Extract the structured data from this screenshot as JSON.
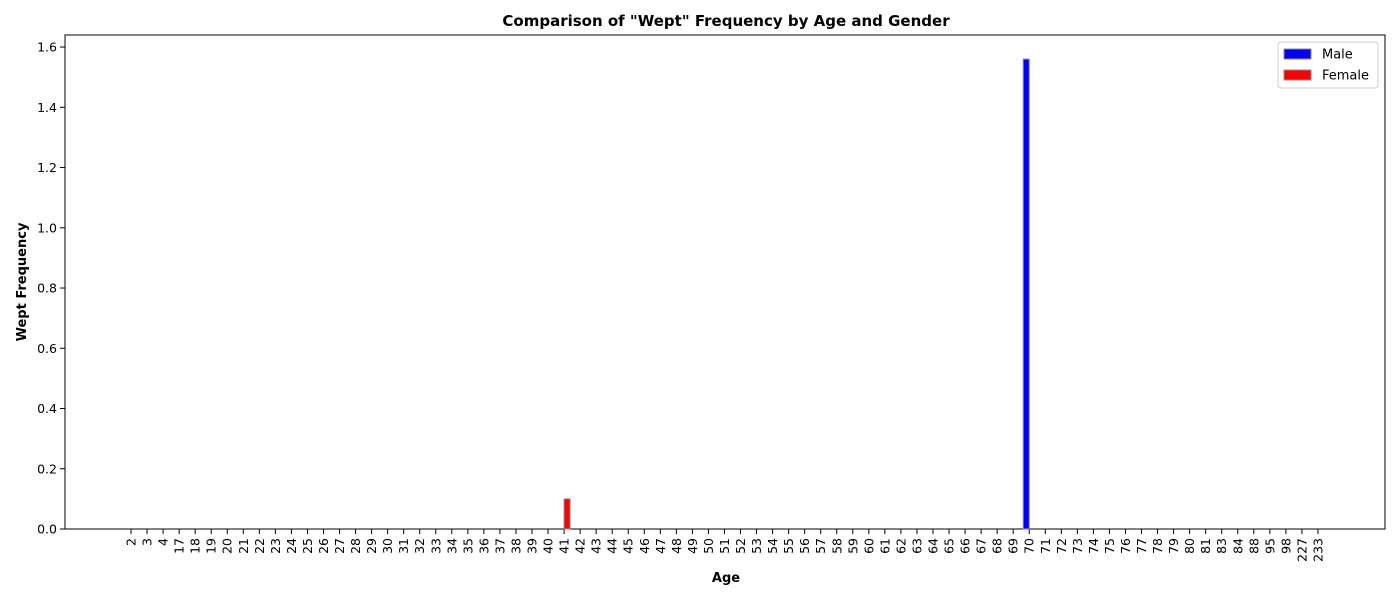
{
  "chart_data": {
    "type": "bar",
    "title": "Comparison of \"Wept\" Frequency by Age and Gender",
    "xlabel": "Age",
    "ylabel": "Wept Frequency",
    "ylim": [
      0,
      1.64
    ],
    "yticks": [
      "0.0",
      "0.2",
      "0.4",
      "0.6",
      "0.8",
      "1.0",
      "1.2",
      "1.4",
      "1.6"
    ],
    "categories": [
      "2",
      "3",
      "4",
      "17",
      "18",
      "19",
      "20",
      "21",
      "22",
      "23",
      "24",
      "25",
      "26",
      "27",
      "28",
      "29",
      "30",
      "31",
      "32",
      "33",
      "34",
      "35",
      "36",
      "37",
      "38",
      "39",
      "40",
      "41",
      "42",
      "43",
      "44",
      "45",
      "46",
      "47",
      "48",
      "49",
      "50",
      "51",
      "52",
      "53",
      "54",
      "55",
      "56",
      "57",
      "58",
      "59",
      "60",
      "61",
      "62",
      "63",
      "64",
      "65",
      "66",
      "67",
      "68",
      "69",
      "70",
      "71",
      "72",
      "73",
      "74",
      "75",
      "76",
      "77",
      "78",
      "79",
      "80",
      "81",
      "83",
      "84",
      "88",
      "95",
      "98",
      "227",
      "233"
    ],
    "series": [
      {
        "name": "Male",
        "color": "#0000ff",
        "values": {
          "70": 1.56
        }
      },
      {
        "name": "Female",
        "color": "#ff0000",
        "values": {
          "41": 0.1
        }
      }
    ],
    "grid": false,
    "legend_position": "top-right"
  }
}
